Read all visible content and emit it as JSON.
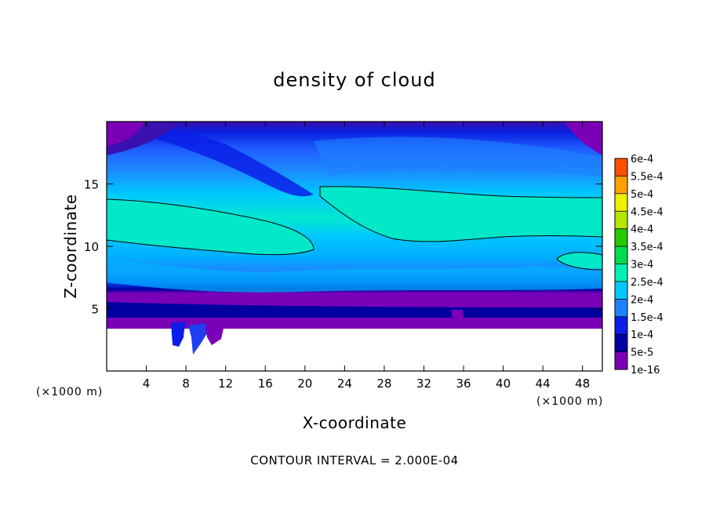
{
  "chart_data": {
    "type": "heatmap",
    "title": "density of cloud",
    "xlabel": "X-coordinate",
    "ylabel": "Z-coordinate",
    "x_unit": "(×1000 m)",
    "xlim": [
      0,
      50
    ],
    "ylim": [
      0,
      20
    ],
    "x_ticks": [
      4,
      8,
      12,
      16,
      20,
      24,
      28,
      32,
      36,
      40,
      44,
      48
    ],
    "y_ticks": [
      5,
      10,
      15
    ],
    "colorbar": {
      "levels": [
        "1e-16",
        "5e-5",
        "1e-4",
        "1.5e-4",
        "2e-4",
        "2.5e-4",
        "3e-4",
        "3.5e-4",
        "4e-4",
        "4.5e-4",
        "5e-4",
        "5.5e-4",
        "6e-4"
      ],
      "colors": [
        "#7a00b8",
        "#0000a0",
        "#0a1ee8",
        "#1e82ff",
        "#00c8ff",
        "#00f0b4",
        "#00dc50",
        "#28c800",
        "#b4e600",
        "#f0f000",
        "#ffa000",
        "#ff5000",
        "#ff1e1e",
        "#ff7878"
      ]
    },
    "contour_interval": "CONTOUR INTERVAL = 2.000E-04",
    "contour_level": "2e-4"
  }
}
